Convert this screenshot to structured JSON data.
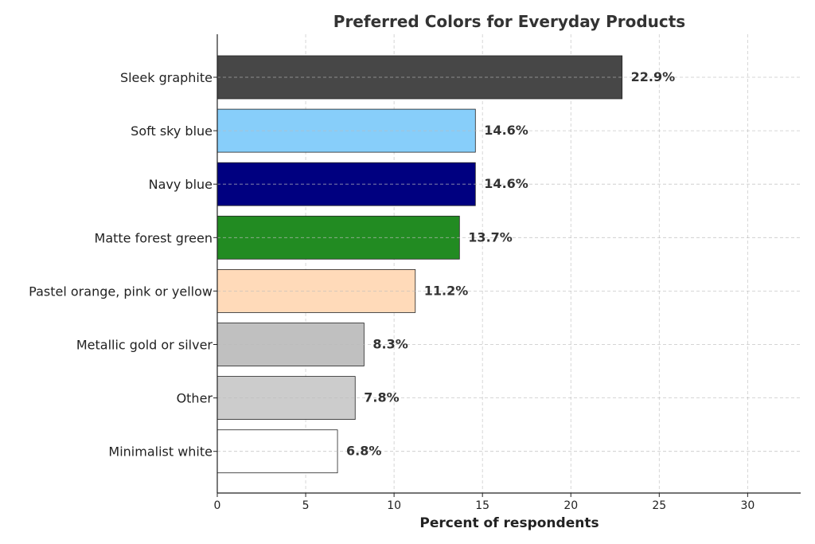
{
  "chart_data": {
    "type": "bar",
    "orientation": "horizontal",
    "title": "Preferred Colors for Everyday Products",
    "xlabel": "Percent of respondents",
    "ylabel": "",
    "xlim": [
      0,
      33
    ],
    "xticks": [
      0,
      5,
      10,
      15,
      20,
      25,
      30
    ],
    "grid": true,
    "categories": [
      "Sleek graphite",
      "Soft sky blue",
      "Navy blue",
      "Matte forest green",
      "Pastel orange, pink or yellow",
      "Metallic gold or silver",
      "Other",
      "Minimalist white"
    ],
    "values": [
      22.9,
      14.6,
      14.6,
      13.7,
      11.2,
      8.3,
      7.8,
      6.8
    ],
    "data_labels": [
      "22.9%",
      "14.6%",
      "14.6%",
      "13.7%",
      "11.2%",
      "8.3%",
      "7.8%",
      "6.8%"
    ],
    "colors": [
      "#474747",
      "#87cefa",
      "#000080",
      "#228b22",
      "#ffdab9",
      "#c0c0c0",
      "#cccccc",
      "#ffffff"
    ]
  }
}
